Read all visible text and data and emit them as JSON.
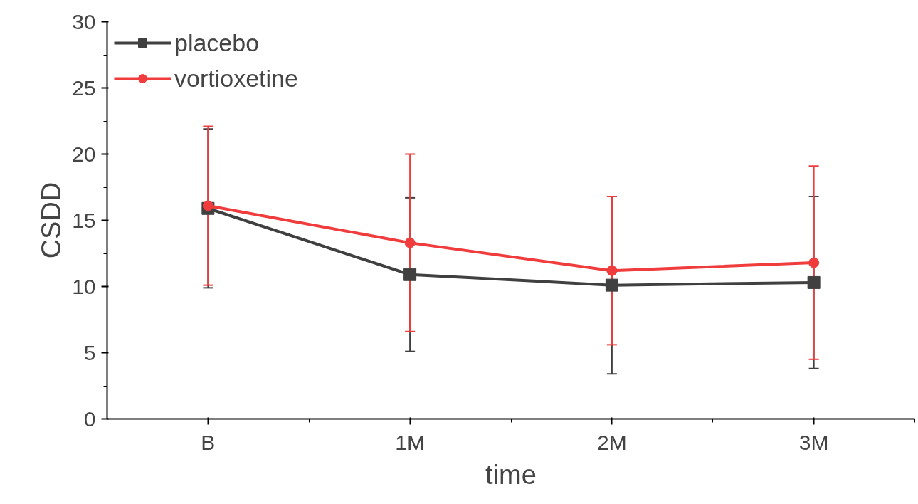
{
  "chart_data": {
    "type": "line",
    "xlabel": "time",
    "ylabel": "CSDD",
    "categories": [
      "B",
      "1M",
      "2M",
      "3M"
    ],
    "series": [
      {
        "name": "placebo",
        "color": "#404040",
        "marker": "square",
        "values": [
          15.9,
          10.9,
          10.1,
          10.3
        ],
        "errors": [
          6.0,
          5.8,
          6.7,
          6.5
        ]
      },
      {
        "name": "vortioxetine",
        "color": "#f03c3c",
        "marker": "circle",
        "values": [
          16.1,
          13.3,
          11.2,
          11.8
        ],
        "errors": [
          6.0,
          6.7,
          5.6,
          7.3
        ]
      }
    ],
    "ylim": [
      0,
      30
    ],
    "yticks": [
      0,
      5,
      10,
      15,
      20,
      25,
      30
    ],
    "grid": false,
    "legend": "top left"
  }
}
